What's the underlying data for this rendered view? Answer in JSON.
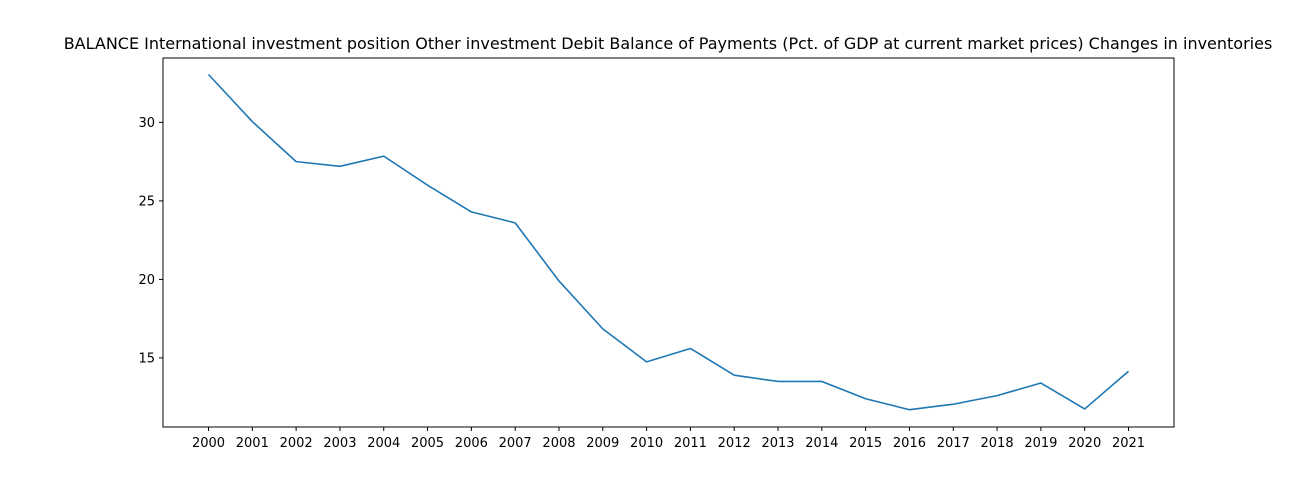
{
  "chart_data": {
    "type": "line",
    "title": "BALANCE International investment position Other investment Debit Balance of Payments (Pct. of GDP at current market prices) Changes in inventories",
    "xlabel": "",
    "ylabel": "",
    "x": [
      "2000",
      "2001",
      "2002",
      "2003",
      "2004",
      "2005",
      "2006",
      "2007",
      "2008",
      "2009",
      "2010",
      "2011",
      "2012",
      "2013",
      "2014",
      "2015",
      "2016",
      "2017",
      "2018",
      "2019",
      "2020",
      "2021"
    ],
    "series": [
      {
        "values": [
          33.05,
          30.05,
          27.5,
          27.2,
          27.85,
          26.0,
          24.3,
          23.6,
          19.9,
          16.85,
          14.75,
          15.6,
          13.9,
          13.5,
          13.5,
          12.4,
          11.7,
          12.05,
          12.6,
          13.4,
          11.75,
          14.15
        ]
      }
    ],
    "yticks": [
      15,
      20,
      25,
      30
    ],
    "ylim": [
      10.6,
      34.1
    ],
    "grid": false,
    "colors": {
      "line": "#1f77b4",
      "axis": "#000000",
      "background": "#ffffff"
    }
  }
}
